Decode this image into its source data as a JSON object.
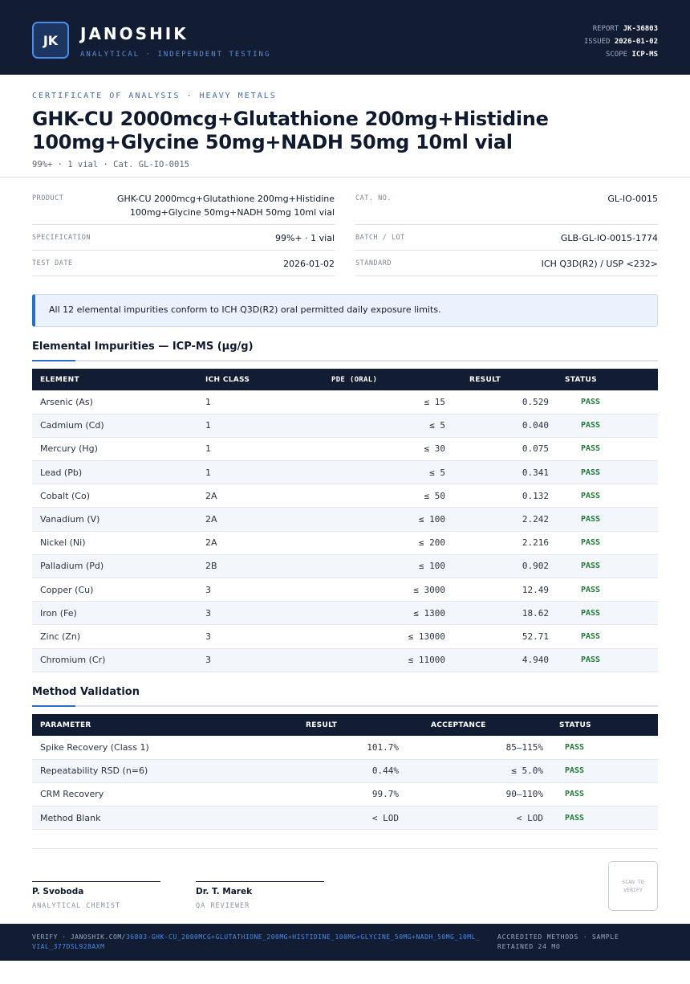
{
  "header": {
    "logo": "JK",
    "brand": "JANOSHIK",
    "tagline": "ANALYTICAL · INDEPENDENT TESTING",
    "report_label": "REPORT",
    "report_value": "JK-36803",
    "issued_label": "ISSUED",
    "issued_value": "2026-01-02",
    "scope_label": "SCOPE",
    "scope_value": "ICP-MS"
  },
  "doc": {
    "kicker": "CERTIFICATE OF ANALYSIS · HEAVY METALS",
    "title": "GHK-CU 2000mcg+Glutathione 200mg+Histidine 100mg+Glycine 50mg+NADH 50mg 10ml vial",
    "subline": "99%+ · 1 vial  ·  Cat. GL-IO-0015"
  },
  "info": {
    "product_label": "PRODUCT",
    "product_value_line1": "GHK-CU 2000mcg+Glutathione 200mg+Histidine",
    "product_value_line2": "100mg+Glycine 50mg+NADH 50mg 10ml vial",
    "spec_label": "SPECIFICATION",
    "spec_value": "99%+ · 1 vial",
    "date_label": "TEST DATE",
    "date_value": "2026-01-02",
    "cat_label": "CAT. NO.",
    "cat_value": "GL-IO-0015",
    "batch_label": "BATCH / LOT",
    "batch_value": "GLB-GL-IO-0015-1774",
    "standard_label": "STANDARD",
    "standard_value": "ICH Q3D(R2) / USP <232>"
  },
  "notice": "All 12 elemental impurities conform to ICH Q3D(R2) oral permitted daily exposure limits.",
  "impurities": {
    "title": "Elemental Impurities — ICP-MS (µg/g)",
    "headers": [
      "ELEMENT",
      "ICH CLASS",
      "PDE (ORAL)",
      "RESULT",
      "STATUS"
    ],
    "rows": [
      {
        "element": "Arsenic (As)",
        "class": "1",
        "pde": "≤ 15",
        "result": "0.529",
        "status": "PASS"
      },
      {
        "element": "Cadmium (Cd)",
        "class": "1",
        "pde": "≤ 5",
        "result": "0.040",
        "status": "PASS"
      },
      {
        "element": "Mercury (Hg)",
        "class": "1",
        "pde": "≤ 30",
        "result": "0.075",
        "status": "PASS"
      },
      {
        "element": "Lead (Pb)",
        "class": "1",
        "pde": "≤ 5",
        "result": "0.341",
        "status": "PASS"
      },
      {
        "element": "Cobalt (Co)",
        "class": "2A",
        "pde": "≤ 50",
        "result": "0.132",
        "status": "PASS"
      },
      {
        "element": "Vanadium (V)",
        "class": "2A",
        "pde": "≤ 100",
        "result": "2.242",
        "status": "PASS"
      },
      {
        "element": "Nickel (Ni)",
        "class": "2A",
        "pde": "≤ 200",
        "result": "2.216",
        "status": "PASS"
      },
      {
        "element": "Palladium (Pd)",
        "class": "2B",
        "pde": "≤ 100",
        "result": "0.902",
        "status": "PASS"
      },
      {
        "element": "Copper (Cu)",
        "class": "3",
        "pde": "≤ 3000",
        "result": "12.49",
        "status": "PASS"
      },
      {
        "element": "Iron (Fe)",
        "class": "3",
        "pde": "≤ 1300",
        "result": "18.62",
        "status": "PASS"
      },
      {
        "element": "Zinc (Zn)",
        "class": "3",
        "pde": "≤ 13000",
        "result": "52.71",
        "status": "PASS"
      },
      {
        "element": "Chromium (Cr)",
        "class": "3",
        "pde": "≤ 11000",
        "result": "4.940",
        "status": "PASS"
      }
    ]
  },
  "validation": {
    "title": "Method Validation",
    "headers": [
      "PARAMETER",
      "RESULT",
      "ACCEPTANCE",
      "STATUS"
    ],
    "rows": [
      {
        "parameter": "Spike Recovery (Class 1)",
        "result": "101.7%",
        "acceptance": "85–115%",
        "status": "PASS"
      },
      {
        "parameter": "Repeatability RSD (n=6)",
        "result": "0.44%",
        "acceptance": "≤ 5.0%",
        "status": "PASS"
      },
      {
        "parameter": "CRM Recovery",
        "result": "99.7%",
        "acceptance": "90–110%",
        "status": "PASS"
      },
      {
        "parameter": "Method Blank",
        "result": "< LOD",
        "acceptance": "< LOD",
        "status": "PASS"
      }
    ]
  },
  "signatures": [
    {
      "name": "P. Svoboda",
      "role": "ANALYTICAL CHEMIST"
    },
    {
      "name": "Dr. T. Marek",
      "role": "QA REVIEWER"
    }
  ],
  "qr_text": "SCAN TO VERIFY",
  "footer": {
    "verify_prefix": "VERIFY · JANOSHIK.COM/",
    "verify_path": "36803-GHK-CU_2000MCG+GLUTATHIONE_200MG+HISTIDINE_100MG+GLYCINE_50MG+NADH_50MG_10ML_VIAL_377DSL928AXM",
    "right_text": "ACCREDITED METHODS · SAMPLE RETAINED 24 MO"
  },
  "colors": {
    "navy": "#121d33",
    "accent": "#2d6cc7",
    "pass": "#1d7a35"
  }
}
